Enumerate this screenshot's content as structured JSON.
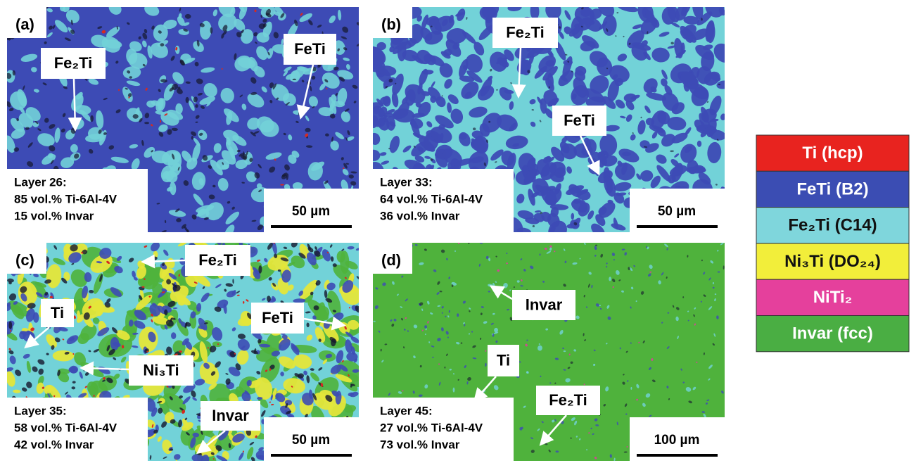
{
  "panels": [
    {
      "label": "(a)",
      "callouts": [
        "Fe₂Ti",
        "FeTi"
      ],
      "info": [
        "Layer 26:",
        "85 vol.% Ti-6Al-4V",
        "15 vol.% Invar"
      ],
      "scale_bar": "50 µm"
    },
    {
      "label": "(b)",
      "callouts": [
        "Fe₂Ti",
        "FeTi"
      ],
      "info": [
        "Layer 33:",
        "64 vol.% Ti-6Al-4V",
        "36 vol.% Invar"
      ],
      "scale_bar": "50 µm"
    },
    {
      "label": "(c)",
      "callouts": [
        "Fe₂Ti",
        "Ti",
        "FeTi",
        "Ni₃Ti",
        "Invar"
      ],
      "info": [
        "Layer 35:",
        "58 vol.% Ti-6Al-4V",
        "42 vol.% Invar"
      ],
      "scale_bar": "50 µm"
    },
    {
      "label": "(d)",
      "callouts": [
        "Invar",
        "Ti",
        "Fe₂Ti"
      ],
      "info": [
        "Layer 45:",
        "27 vol.% Ti-6Al-4V",
        "73 vol.% Invar"
      ],
      "scale_bar": "100 µm"
    }
  ],
  "legend": [
    {
      "label": "Ti (hcp)",
      "color": "#e8231f"
    },
    {
      "label": "FeTi (B2)",
      "color": "#3b4db3"
    },
    {
      "label": "Fe₂Ti (C14)",
      "color": "#7fd6dc"
    },
    {
      "label": "Ni₃Ti (DO₂₄)",
      "color": "#f2ee3a"
    },
    {
      "label": "NiTi₂",
      "color": "#e5409c"
    },
    {
      "label": "Invar (fcc)",
      "color": "#4aae43"
    }
  ]
}
